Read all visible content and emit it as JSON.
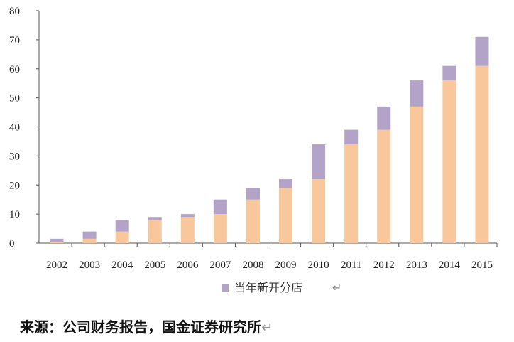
{
  "chart_data": {
    "type": "bar",
    "stacked": true,
    "categories": [
      "2002",
      "2003",
      "2004",
      "2005",
      "2006",
      "2007",
      "2008",
      "2009",
      "2010",
      "2011",
      "2012",
      "2013",
      "2014",
      "2015"
    ],
    "series": [
      {
        "values": [
          0.5,
          1.5,
          4,
          8,
          9,
          10,
          15,
          19,
          22,
          34,
          39,
          47,
          56,
          61
        ],
        "color": "#f8c79b"
      },
      {
        "name": "当年新开分店",
        "values": [
          1,
          2.5,
          4,
          1,
          1,
          5,
          4,
          3,
          12,
          5,
          8,
          9,
          5,
          10
        ],
        "color": "#b3a3c8"
      }
    ],
    "ylim": [
      0,
      80
    ],
    "yticks": [
      "0",
      "10",
      "20",
      "30",
      "40",
      "50",
      "60",
      "70",
      "80"
    ],
    "legend_position": "bottom-center"
  },
  "legend": {
    "label": "当年新开分店"
  },
  "source": {
    "text": "来源：公司财务报告，国金证券研究所"
  }
}
